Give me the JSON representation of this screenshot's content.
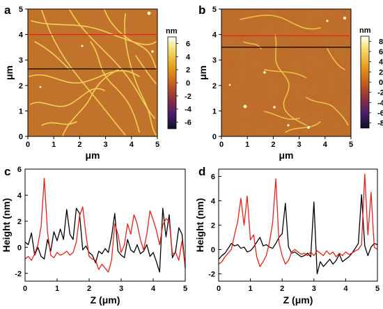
{
  "figure": {
    "panels": [
      {
        "letter": "a"
      },
      {
        "letter": "b"
      },
      {
        "letter": "c"
      },
      {
        "letter": "d"
      }
    ]
  },
  "chart_data": [
    {
      "panel": "a",
      "type": "heatmap",
      "title": "",
      "xlabel": "μm",
      "ylabel": "μm",
      "xlim": [
        0,
        5
      ],
      "ylim": [
        0,
        5
      ],
      "xticks": [
        "0",
        "1",
        "2",
        "3",
        "4",
        "5"
      ],
      "yticks": [
        "0",
        "1",
        "2",
        "3",
        "4",
        "5"
      ],
      "colorbar": {
        "title": "nm",
        "range": [
          -7,
          7
        ],
        "ticks": [
          "6",
          "4",
          "2",
          "0",
          "-2",
          "-4",
          "-6"
        ]
      },
      "profile_lines": [
        {
          "color": "#e8201c",
          "y": 4.0
        },
        {
          "color": "#000000",
          "y": 2.65
        }
      ]
    },
    {
      "panel": "b",
      "type": "heatmap",
      "title": "",
      "xlabel": "μm",
      "ylabel": "μm",
      "xlim": [
        0,
        5
      ],
      "ylim": [
        0,
        5
      ],
      "xticks": [
        "0",
        "1",
        "2",
        "3",
        "4",
        "5"
      ],
      "yticks": [
        "0",
        "1",
        "2",
        "3",
        "4",
        "5"
      ],
      "colorbar": {
        "title": "nm",
        "range": [
          -9,
          9
        ],
        "ticks": [
          "8",
          "6",
          "4",
          "2",
          "0",
          "-2",
          "-4",
          "-6",
          "-8"
        ]
      },
      "profile_lines": [
        {
          "color": "#e8201c",
          "y": 3.95
        },
        {
          "color": "#000000",
          "y": 3.5
        }
      ]
    },
    {
      "panel": "c",
      "type": "line",
      "title": "",
      "xlabel": "Z (μm)",
      "ylabel": "Height (nm)",
      "xlim": [
        0,
        5
      ],
      "ylim": [
        -2.6,
        6
      ],
      "xticks": [
        "0",
        "1",
        "2",
        "3",
        "4",
        "5"
      ],
      "yticks": [
        "-2",
        "0",
        "2",
        "4",
        "6"
      ],
      "series": [
        {
          "color": "#000000",
          "x": [
            0,
            0.1,
            0.2,
            0.3,
            0.4,
            0.5,
            0.6,
            0.7,
            0.8,
            0.9,
            1.0,
            1.1,
            1.2,
            1.3,
            1.4,
            1.5,
            1.6,
            1.7,
            1.8,
            1.9,
            2.0,
            2.1,
            2.2,
            2.3,
            2.4,
            2.5,
            2.6,
            2.7,
            2.8,
            2.9,
            3.0,
            3.1,
            3.2,
            3.3,
            3.4,
            3.5,
            3.6,
            3.7,
            3.8,
            3.9,
            4.0,
            4.1,
            4.2,
            4.3,
            4.4,
            4.5,
            4.6,
            4.7,
            4.8,
            4.9,
            5.0
          ],
          "y": [
            0.4,
            0.2,
            1.1,
            -0.6,
            0.0,
            -0.7,
            -0.9,
            0.6,
            -0.3,
            1.2,
            0.5,
            1.4,
            0.6,
            2.9,
            1.0,
            0.6,
            3.0,
            2.6,
            -0.2,
            0.1,
            -0.4,
            -0.6,
            -1.2,
            -0.3,
            -0.5,
            -0.1,
            -0.4,
            0.8,
            2.6,
            -0.3,
            -0.6,
            -0.8,
            0.6,
            -0.2,
            -0.4,
            0.2,
            -0.5,
            -0.3,
            0.2,
            -0.7,
            -0.4,
            -1.1,
            -1.9,
            3.0,
            0.8,
            2.5,
            -0.8,
            -0.3,
            1.5,
            1.0,
            -1.6
          ]
        },
        {
          "color": "#e8201c",
          "x": [
            0,
            0.1,
            0.2,
            0.3,
            0.4,
            0.5,
            0.6,
            0.7,
            0.8,
            0.9,
            1.0,
            1.1,
            1.2,
            1.3,
            1.4,
            1.5,
            1.6,
            1.7,
            1.8,
            1.9,
            2.0,
            2.1,
            2.2,
            2.3,
            2.4,
            2.5,
            2.6,
            2.7,
            2.8,
            2.9,
            3.0,
            3.1,
            3.2,
            3.3,
            3.4,
            3.5,
            3.6,
            3.7,
            3.8,
            3.9,
            4.0,
            4.1,
            4.2,
            4.3,
            4.4,
            4.5,
            4.6,
            4.7,
            4.8,
            4.9,
            5.0
          ],
          "y": [
            -0.9,
            -0.7,
            -1.0,
            -0.5,
            0.2,
            1.6,
            5.3,
            1.2,
            -0.6,
            -0.8,
            -0.4,
            -0.6,
            -0.5,
            -0.3,
            -0.6,
            -0.4,
            0.4,
            2.4,
            3.1,
            1.0,
            -0.7,
            -0.9,
            -1.0,
            -1.7,
            -1.3,
            -1.6,
            -1.9,
            -1.0,
            1.8,
            1.0,
            -0.4,
            0.2,
            1.8,
            1.0,
            2.5,
            1.8,
            0.6,
            -0.2,
            1.0,
            2.8,
            2.1,
            1.3,
            0.2,
            1.7,
            2.2,
            2.0,
            -0.5,
            -0.4,
            -1.0,
            0.5,
            -1.5
          ]
        }
      ]
    },
    {
      "panel": "d",
      "type": "line",
      "title": "",
      "xlabel": "Z (μm)",
      "ylabel": "Height (nm)",
      "xlim": [
        0,
        5
      ],
      "ylim": [
        -2.6,
        6.6
      ],
      "xticks": [
        "0",
        "1",
        "2",
        "3",
        "4",
        "5"
      ],
      "yticks": [
        "-2",
        "0",
        "2",
        "4",
        "6"
      ],
      "series": [
        {
          "color": "#000000",
          "x": [
            0,
            0.1,
            0.2,
            0.3,
            0.4,
            0.5,
            0.6,
            0.7,
            0.8,
            0.9,
            1.0,
            1.1,
            1.2,
            1.3,
            1.4,
            1.5,
            1.6,
            1.7,
            1.8,
            1.9,
            2.0,
            2.1,
            2.2,
            2.3,
            2.4,
            2.5,
            2.6,
            2.7,
            2.8,
            2.9,
            3.0,
            3.1,
            3.2,
            3.3,
            3.4,
            3.5,
            3.6,
            3.7,
            3.8,
            3.9,
            4.0,
            4.1,
            4.2,
            4.3,
            4.4,
            4.5,
            4.6,
            4.7,
            4.8,
            4.9,
            5.0
          ],
          "y": [
            -0.8,
            -0.5,
            -0.3,
            0.1,
            0.5,
            0.3,
            0.4,
            0.1,
            0.2,
            -0.2,
            -0.1,
            0.2,
            0.6,
            1.0,
            0.3,
            0.4,
            0.2,
            0.1,
            0.5,
            1.0,
            1.3,
            3.8,
            0.2,
            -0.3,
            -0.2,
            -0.4,
            -0.6,
            -0.5,
            -0.3,
            -0.6,
            3.9,
            -2.0,
            -1.0,
            -1.4,
            -1.1,
            -0.8,
            -1.2,
            -0.9,
            -0.4,
            -1.0,
            -0.8,
            -0.6,
            -0.3,
            0.1,
            0.5,
            4.5,
            0.3,
            -0.5,
            0.2,
            0.5,
            0.4
          ]
        },
        {
          "color": "#e8201c",
          "x": [
            0,
            0.1,
            0.2,
            0.3,
            0.4,
            0.5,
            0.6,
            0.7,
            0.8,
            0.9,
            1.0,
            1.1,
            1.2,
            1.3,
            1.4,
            1.5,
            1.6,
            1.7,
            1.8,
            1.9,
            2.0,
            2.1,
            2.2,
            2.3,
            2.4,
            2.5,
            2.6,
            2.7,
            2.8,
            2.9,
            3.0,
            3.1,
            3.2,
            3.3,
            3.4,
            3.5,
            3.6,
            3.7,
            3.8,
            3.9,
            4.0,
            4.1,
            4.2,
            4.3,
            4.4,
            4.5,
            4.6,
            4.7,
            4.8,
            4.9,
            5.0
          ],
          "y": [
            -1.2,
            -1.0,
            -0.6,
            -0.3,
            0.0,
            1.2,
            2.3,
            4.2,
            2.0,
            4.4,
            0.8,
            1.2,
            -0.6,
            -1.4,
            -1.0,
            -0.5,
            0.6,
            2.2,
            5.8,
            0.6,
            -0.5,
            -1.2,
            -0.9,
            -0.2,
            0.0,
            -0.2,
            -0.4,
            -0.3,
            -0.5,
            -0.2,
            -0.5,
            -0.1,
            -0.3,
            -0.5,
            -0.1,
            -0.4,
            -0.2,
            -0.6,
            -0.3,
            -0.5,
            -0.2,
            -0.4,
            -0.3,
            -0.1,
            0.0,
            0.4,
            6.2,
            1.2,
            4.7,
            0.2,
            0.0
          ]
        }
      ]
    }
  ]
}
